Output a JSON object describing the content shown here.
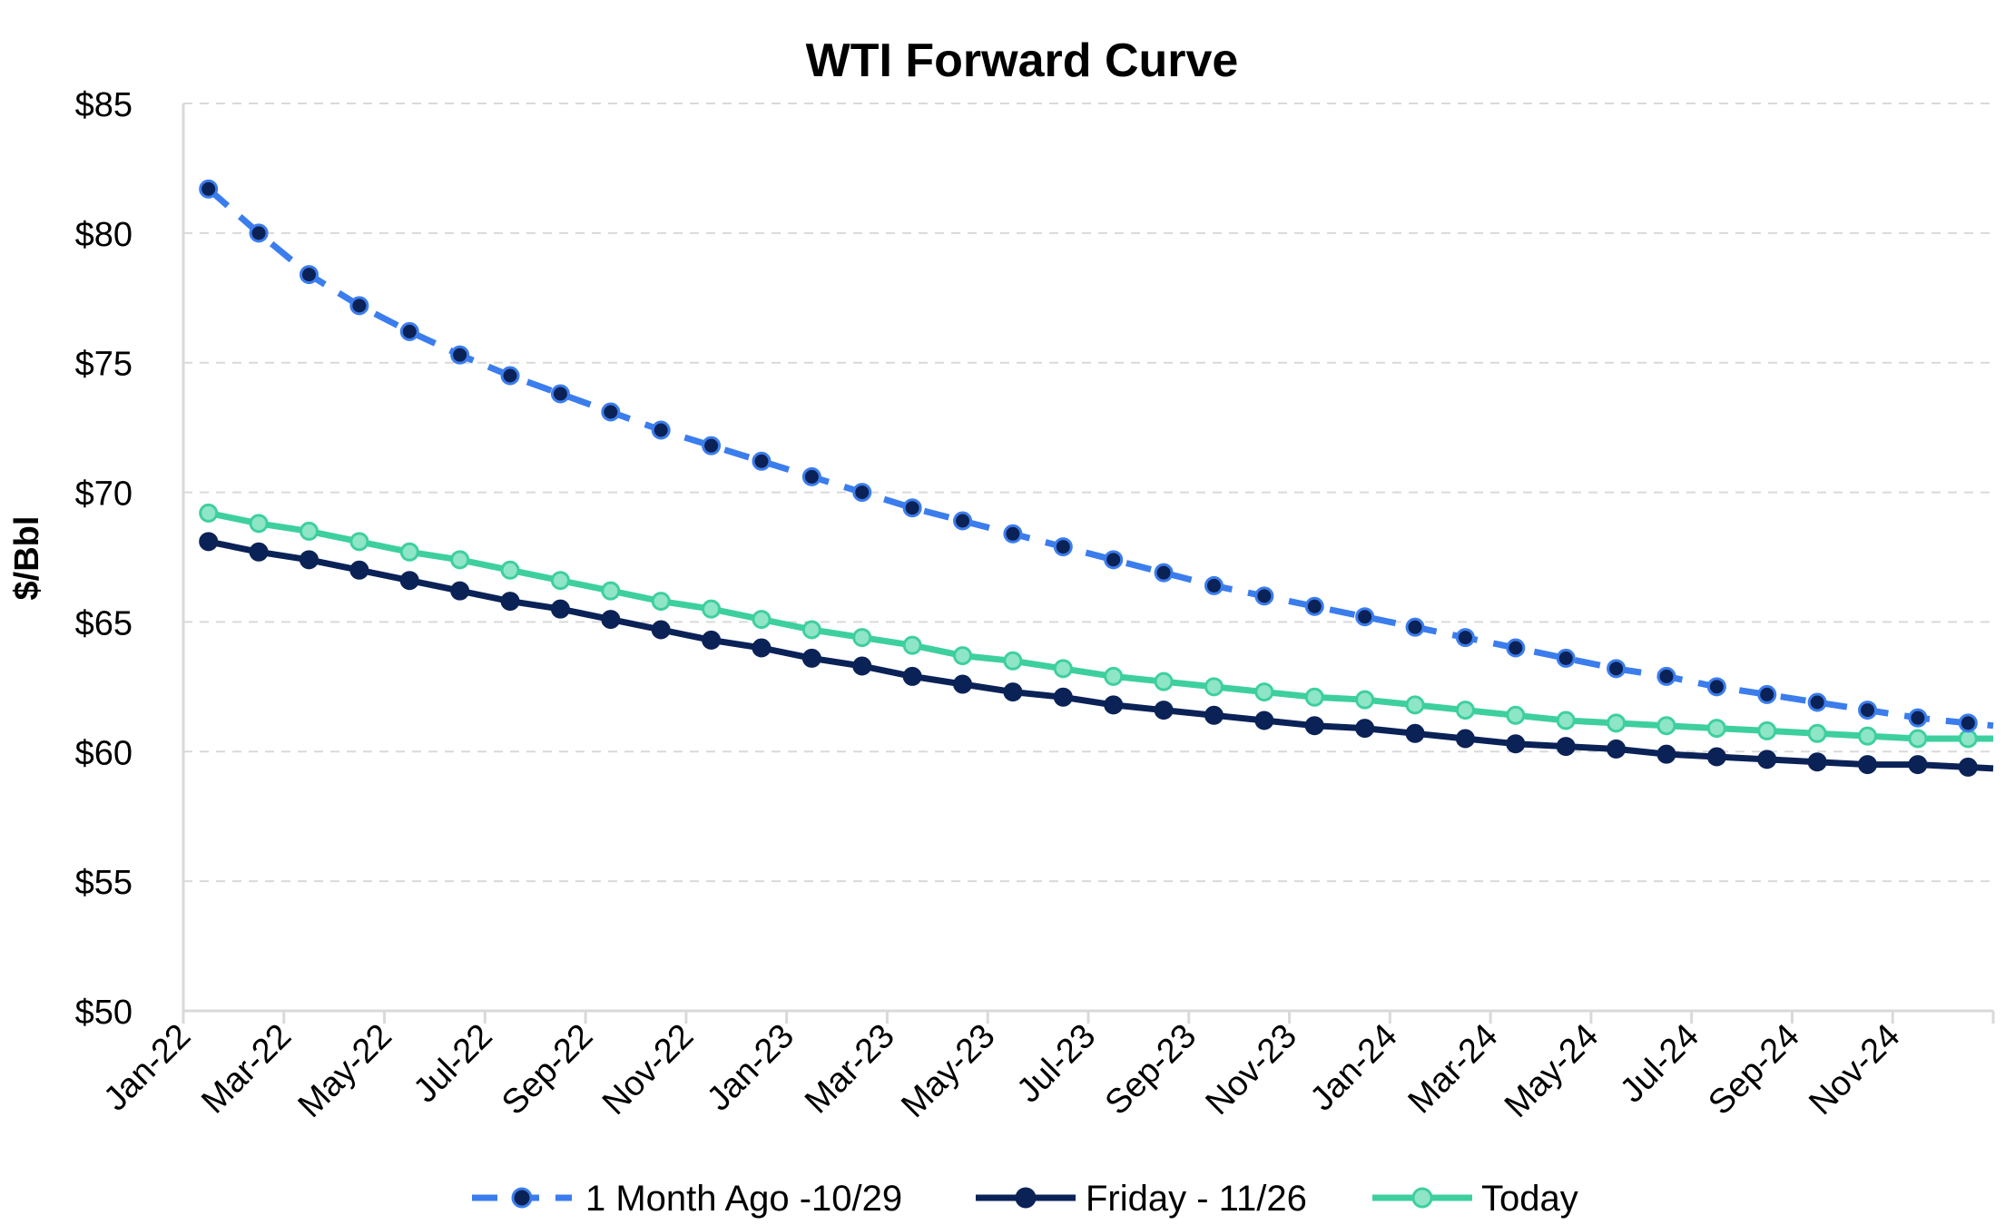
{
  "chart_data": {
    "type": "line",
    "title": "WTI Forward Curve",
    "xlabel": "",
    "ylabel": "$/Bbl",
    "ylim": [
      50,
      85
    ],
    "y_ticks": [
      85,
      80,
      75,
      70,
      65,
      60,
      55,
      50
    ],
    "y_tick_labels": [
      "$85",
      "$80",
      "$75",
      "$70",
      "$65",
      "$60",
      "$55",
      "$50"
    ],
    "x_tick_labels": [
      "Jan-22",
      "Mar-22",
      "May-22",
      "Jul-22",
      "Sep-22",
      "Nov-22",
      "Jan-23",
      "Mar-23",
      "May-23",
      "Jul-23",
      "Sep-23",
      "Nov-23",
      "Jan-24",
      "Mar-24",
      "May-24",
      "Jul-24",
      "Sep-24",
      "Nov-24"
    ],
    "x": [
      "Jan-22",
      "Feb-22",
      "Mar-22",
      "Apr-22",
      "May-22",
      "Jun-22",
      "Jul-22",
      "Aug-22",
      "Sep-22",
      "Oct-22",
      "Nov-22",
      "Dec-22",
      "Jan-23",
      "Feb-23",
      "Mar-23",
      "Apr-23",
      "May-23",
      "Jun-23",
      "Jul-23",
      "Aug-23",
      "Sep-23",
      "Oct-23",
      "Nov-23",
      "Dec-23",
      "Jan-24",
      "Feb-24",
      "Mar-24",
      "Apr-24",
      "May-24",
      "Jun-24",
      "Jul-24",
      "Aug-24",
      "Sep-24",
      "Oct-24",
      "Nov-24",
      "Dec-24"
    ],
    "grid": "horizontal dashed",
    "legend_position": "bottom",
    "series": [
      {
        "name": "1 Month Ago -10/29",
        "color": "#3b7ded",
        "marker_color": "#0b2257",
        "line_style": "dashed",
        "values": [
          81.7,
          80.0,
          78.4,
          77.2,
          76.2,
          75.3,
          74.5,
          73.8,
          73.1,
          72.4,
          71.8,
          71.2,
          70.6,
          70.0,
          69.4,
          68.9,
          68.4,
          67.9,
          67.4,
          66.9,
          66.4,
          66.0,
          65.6,
          65.2,
          64.8,
          64.4,
          64.0,
          63.6,
          63.2,
          62.9,
          62.5,
          62.2,
          61.9,
          61.6,
          61.3,
          61.1
        ]
      },
      {
        "name": "Friday - 11/26",
        "color": "#0b2257",
        "marker_color": "#0b2257",
        "line_style": "solid",
        "values": [
          68.1,
          67.7,
          67.4,
          67.0,
          66.6,
          66.2,
          65.8,
          65.5,
          65.1,
          64.7,
          64.3,
          64.0,
          63.6,
          63.3,
          62.9,
          62.6,
          62.3,
          62.1,
          61.8,
          61.6,
          61.4,
          61.2,
          61.0,
          60.9,
          60.7,
          60.5,
          60.3,
          60.2,
          60.1,
          59.9,
          59.8,
          59.7,
          59.6,
          59.5,
          59.5,
          59.4
        ]
      },
      {
        "name": "Today",
        "color": "#3ecf9f",
        "marker_color": "#3ecf9f",
        "line_style": "solid",
        "values": [
          69.2,
          68.8,
          68.5,
          68.1,
          67.7,
          67.4,
          67.0,
          66.6,
          66.2,
          65.8,
          65.5,
          65.1,
          64.7,
          64.4,
          64.1,
          63.7,
          63.5,
          63.2,
          62.9,
          62.7,
          62.5,
          62.3,
          62.1,
          62.0,
          61.8,
          61.6,
          61.4,
          61.2,
          61.1,
          61.0,
          60.9,
          60.8,
          60.7,
          60.6,
          60.5,
          60.5
        ]
      }
    ]
  }
}
